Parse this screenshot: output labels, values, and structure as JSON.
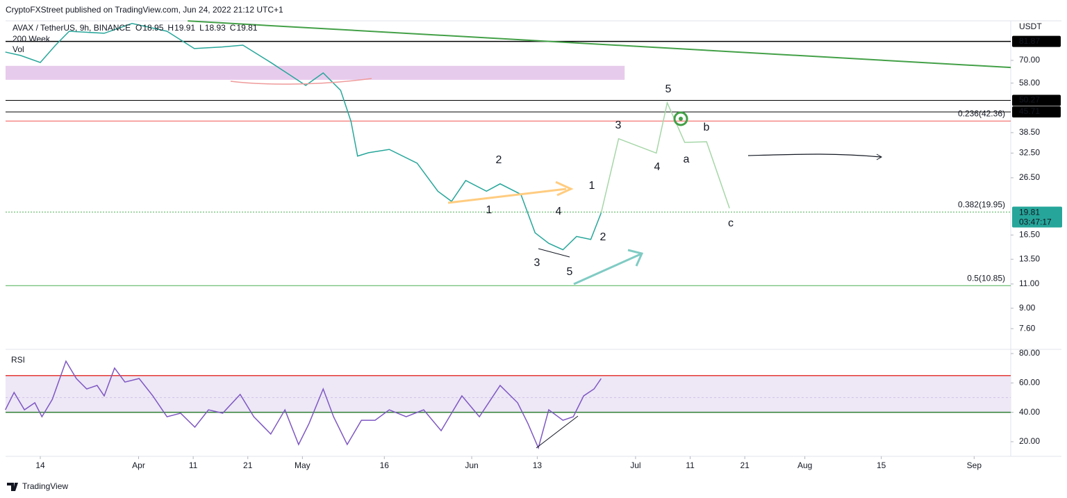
{
  "header": "CryptoFXStreet published on TradingView.com, Jun 24, 2022 21:12 UTC+1",
  "footer": "TradingView",
  "chart_data": [
    {
      "type": "line",
      "title": "AVAX / TetherUS, 9h, BINANCE",
      "ohlc": [
        {
          "label": "O",
          "value": 18.95
        },
        {
          "label": "H",
          "value": 19.91
        },
        {
          "label": "L",
          "value": 18.93
        },
        {
          "label": "C",
          "value": 19.81
        }
      ],
      "indicators": [
        "200 Week",
        "Vol"
      ],
      "currency": "USDT",
      "log_scale": true,
      "color": "#26a69a",
      "x": [
        6.6,
        9.4,
        13,
        15.8,
        18.3,
        24.7,
        29.8,
        36.2,
        41.2,
        46.3,
        50.1,
        55.2,
        59.1,
        61.6,
        64.8,
        68,
        69.9,
        71.1,
        73.1,
        76.9,
        82,
        85.8,
        88.3,
        90.9,
        94.7,
        97.2,
        101,
        103.6,
        106.1,
        108.7,
        111.2,
        113.8,
        115.7
      ],
      "values": [
        75,
        72.9,
        68.8,
        79.4,
        89.1,
        87.6,
        95,
        89.1,
        77.2,
        78.2,
        79.4,
        68.8,
        61.3,
        56.9,
        63.1,
        54.6,
        42.2,
        31.7,
        32.6,
        33.5,
        29.9,
        23.7,
        21.8,
        25.9,
        23.7,
        25.2,
        23.1,
        16.8,
        15.4,
        14.6,
        16.3,
        15.9,
        19.81
      ],
      "xlim": [
        6.64,
        190.7
      ],
      "ylim": [
        6.44,
        97.1
      ],
      "yticks": [
        {
          "value": 70,
          "label": "70.00"
        },
        {
          "value": 58,
          "label": "58.00"
        },
        {
          "value": 38.5,
          "label": "38.50"
        },
        {
          "value": 32.5,
          "label": "32.50"
        },
        {
          "value": 26.5,
          "label": "26.50"
        },
        {
          "value": 16.5,
          "label": "16.50"
        },
        {
          "value": 13.5,
          "label": "13.50"
        },
        {
          "value": 11,
          "label": "11.00"
        },
        {
          "value": 9,
          "label": "9.00"
        },
        {
          "value": 7.6,
          "label": "7.60"
        }
      ],
      "levels": [
        {
          "value": 81.87,
          "color": "#000000"
        },
        {
          "value": 50.27,
          "color": "#000000"
        },
        {
          "value": 45.71,
          "color": "#000000"
        }
      ],
      "fib_levels": [
        {
          "value": 42.36,
          "label": "0.236(42.36)",
          "color": "#ef5350",
          "dotted": false
        },
        {
          "value": 19.95,
          "label": "0.382(19.95)",
          "color": "#4caf50",
          "dotted": true
        },
        {
          "value": 10.85,
          "label": "0.5(10.85)",
          "color": "#4caf50",
          "dotted": false
        }
      ],
      "last": {
        "value": 19.81,
        "countdown": "03:47:17",
        "color": "#26a69a"
      },
      "trendline": {
        "x": [
          40,
          190.7
        ],
        "values": [
          97,
          66
        ],
        "color": "#43a047"
      },
      "zone": {
        "x": [
          6.64,
          120
        ],
        "values": [
          59.6,
          66.9
        ],
        "color": "#e1bee7"
      },
      "projection": {
        "x": [
          115.7,
          118.9,
          125.8,
          127.8,
          131,
          135,
          139.2
        ],
        "values": [
          19.81,
          36.6,
          32.5,
          49.3,
          35.5,
          35.7,
          20.6
        ],
        "color": "#a5d6a7"
      },
      "waves": {
        "red": [
          "1",
          "2",
          "3",
          "4",
          "5"
        ],
        "green": [
          "1",
          "2",
          "3",
          "4",
          "5",
          "a",
          "b",
          "c"
        ],
        "red_color": "#e53935",
        "green_color": "#66bb6a"
      }
    },
    {
      "type": "line",
      "title": "RSI",
      "color": "#7e57c2",
      "x": [
        6.6,
        8.2,
        10.1,
        12,
        13.3,
        15.2,
        17.7,
        19.6,
        21.5,
        23.4,
        24.7,
        26.6,
        28.5,
        31.1,
        33.6,
        36.2,
        38.7,
        41.3,
        43.8,
        46.4,
        49.6,
        52.1,
        55.2,
        57.8,
        60.3,
        62.2,
        64.8,
        66.7,
        69.2,
        71.8,
        74.3,
        76.9,
        80,
        83.2,
        86.4,
        90.2,
        93.4,
        97.2,
        100.4,
        102.3,
        104.2,
        106.1,
        108.7,
        110.6,
        112.5,
        114.4,
        115.7
      ],
      "values": [
        41.7,
        53.5,
        41.7,
        46.5,
        37,
        48.8,
        74.8,
        63,
        55.9,
        58.3,
        51.2,
        70.1,
        60.6,
        63,
        51.2,
        37,
        39.4,
        29.9,
        41.7,
        39.4,
        52.2,
        37,
        25.2,
        41.7,
        18.1,
        32.3,
        55.9,
        37,
        18.1,
        34.6,
        34.6,
        41.7,
        37,
        41.7,
        27.5,
        51.2,
        37,
        58.3,
        46.5,
        32.3,
        15.8,
        41.7,
        34.6,
        37,
        51.2,
        55.9,
        63
      ],
      "xlim": [
        6.64,
        190.7
      ],
      "ylim": [
        11,
        81.9
      ],
      "yticks": [
        {
          "value": 80,
          "label": "80.00"
        },
        {
          "value": 60,
          "label": "60.00"
        },
        {
          "value": 40,
          "label": "40.00"
        },
        {
          "value": 20,
          "label": "20.00"
        }
      ],
      "upper_band": 65,
      "lower_band": 40,
      "middle": 50,
      "upper_color": "#e53935",
      "lower_color": "#2e7d32",
      "fill_color": "#ede7f6",
      "xticks": [
        {
          "value": 13,
          "label": "14"
        },
        {
          "value": 31,
          "label": "Apr"
        },
        {
          "value": 41,
          "label": "11"
        },
        {
          "value": 51,
          "label": "21"
        },
        {
          "value": 61,
          "label": "May"
        },
        {
          "value": 76,
          "label": "16"
        },
        {
          "value": 92,
          "label": "Jun"
        },
        {
          "value": 104,
          "label": "13"
        },
        {
          "value": 122,
          "label": "Jul"
        },
        {
          "value": 132,
          "label": "11"
        },
        {
          "value": 142,
          "label": "21"
        },
        {
          "value": 153,
          "label": "Aug"
        },
        {
          "value": 167,
          "label": "15"
        },
        {
          "value": 184,
          "label": "Sep"
        }
      ]
    }
  ]
}
